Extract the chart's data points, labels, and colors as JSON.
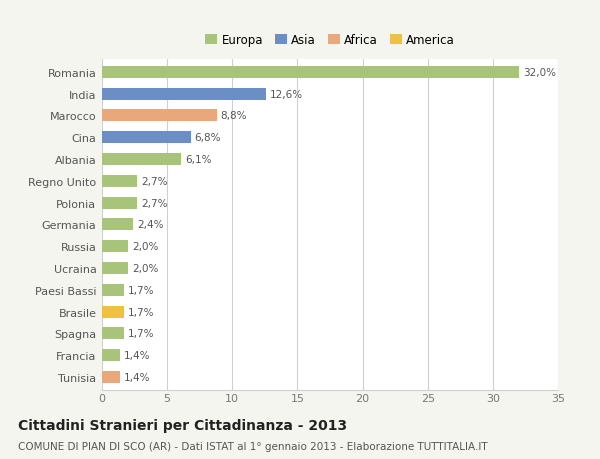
{
  "categories": [
    "Tunisia",
    "Francia",
    "Spagna",
    "Brasile",
    "Paesi Bassi",
    "Ucraina",
    "Russia",
    "Germania",
    "Polonia",
    "Regno Unito",
    "Albania",
    "Cina",
    "Marocco",
    "India",
    "Romania"
  ],
  "values": [
    1.4,
    1.4,
    1.7,
    1.7,
    1.7,
    2.0,
    2.0,
    2.4,
    2.7,
    2.7,
    6.1,
    6.8,
    8.8,
    12.6,
    32.0
  ],
  "colors": [
    "#e8a87c",
    "#a8c47a",
    "#a8c47a",
    "#f0c040",
    "#a8c47a",
    "#a8c47a",
    "#a8c47a",
    "#a8c47a",
    "#a8c47a",
    "#a8c47a",
    "#a8c47a",
    "#6b8fc4",
    "#e8a87c",
    "#6b8fc4",
    "#a8c47a"
  ],
  "labels": [
    "1,4%",
    "1,4%",
    "1,7%",
    "1,7%",
    "1,7%",
    "2,0%",
    "2,0%",
    "2,4%",
    "2,7%",
    "2,7%",
    "6,1%",
    "6,8%",
    "8,8%",
    "12,6%",
    "32,0%"
  ],
  "legend_labels": [
    "Europa",
    "Asia",
    "Africa",
    "America"
  ],
  "legend_colors": [
    "#a8c47a",
    "#6b8fc4",
    "#e8a87c",
    "#f0c040"
  ],
  "title": "Cittadini Stranieri per Cittadinanza - 2013",
  "subtitle": "COMUNE DI PIAN DI SCO (AR) - Dati ISTAT al 1° gennaio 2013 - Elaborazione TUTTITALIA.IT",
  "xlim": [
    0,
    35
  ],
  "xticks": [
    0,
    5,
    10,
    15,
    20,
    25,
    30,
    35
  ],
  "background_color": "#f5f5f0",
  "bar_background": "#ffffff",
  "grid_color": "#d0d0d0",
  "bar_height": 0.55,
  "title_fontsize": 10,
  "subtitle_fontsize": 7.5,
  "label_fontsize": 7.5,
  "tick_fontsize": 8,
  "legend_fontsize": 8.5
}
